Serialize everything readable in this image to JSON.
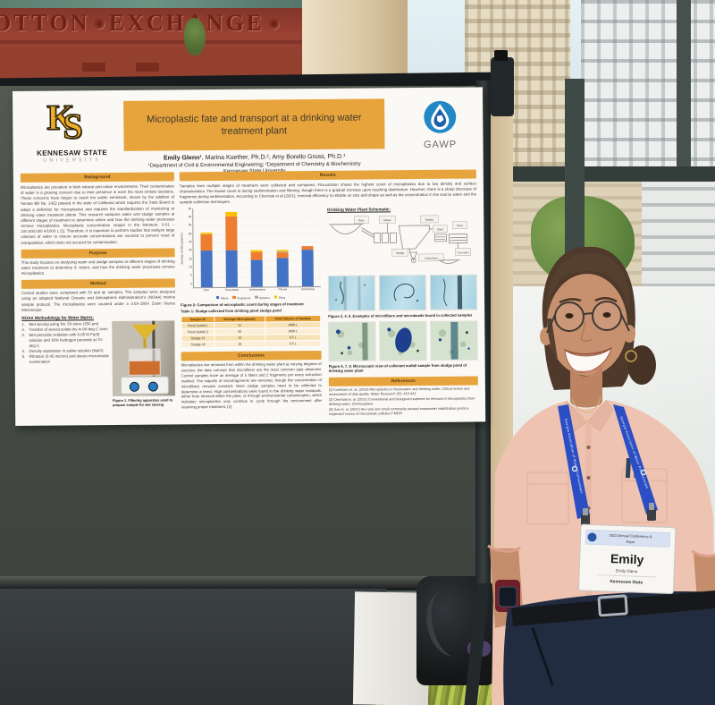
{
  "scene": {
    "mural": {
      "left_text": "OTTON",
      "right_text": "EXCHANGE"
    },
    "badge": {
      "header_line1": "2022 Annual Conference &",
      "header_line2": "Expo",
      "first_name": "Emily",
      "full_name": "Emily Glenn",
      "org": "Kennesaw State"
    },
    "lanyard_text": "Georgia Association of Water Professionals"
  },
  "poster": {
    "logos": {
      "ksu_mark_k": "K",
      "ksu_mark_s": "S",
      "ksu_line1": "KENNESAW STATE",
      "ksu_line2": "UNIVERSITY",
      "gawp_label": "GAWP"
    },
    "title": "Microplastic fate and transport at a drinking water treatment plant",
    "authors_lead": "Emily Glenn¹",
    "authors_rest": ", Marina Koether, Ph.D.², Amy Borello Gruss, Ph.D.¹",
    "affiliations": "¹Department of Civil & Environmental Engineering;  ²Department of Chemistry & Biochemistry",
    "university": "Kennesaw State University",
    "sections": {
      "background": {
        "heading": "Background",
        "text": "Microplastics are prevalent in both natural and urban environments. Their contamination of water is a growing concern due to their presence in even the most remote locations. These concerns have begun to reach the public sentiment, shown by the addition of Senate Bill No. 1422 passed in the state of California which requires the State Board to adopt a definition for microplastics and requires the standardization of monitoring at drinking water treatment plants. This research analyzes water and sludge samples at different stages of treatment to determine where and how the drinking water processes remove microplastics. Microplastic concentration ranges in the literature: 0.01 – 100,000,000 #/1000 L [1]. Therefore, it is important to perform studies that analyze large volumes of water to ensure accurate concentrations are counted to prevent need of extrapolation, which does not account for contamination."
      },
      "purpose": {
        "heading": "Purpose",
        "text": "This study focuses on analyzing water and sludge samples at different stages of drinking water treatment to determine if, where, and how the drinking water processes remove microplastics."
      },
      "method": {
        "heading": "Method",
        "text": "Control studies were completed with DI and air samples. The samples were analyzed using an adapted National Oceanic and Atmospheric Administration's (NOAA) marine sample protocol. The microplastics were counted under a 3.5X-180X Zoom Stereo Microscope.",
        "noaa_heading": "NOAA Methodology for Water Matrix:",
        "noaa_items": [
          "Wet sieving using No. 50 sieve (150 μm)",
          "Transfer of sieved solids dry in 90-deg C oven",
          "Wet peroxide oxidation with 0.05 M Fe(II) solution and 30% hydrogen peroxide at 70-deg C",
          "Density separation in saline solution (NaCl)",
          "Filtration (0.45 micron) and stereo microscopic examination"
        ]
      },
      "figure1_caption": "Figure 1. Filtering apparatus used to prepare sample for wet sieving",
      "results": {
        "heading": "Results",
        "text": "Samples from multiple stages of treatment were collected and compared. Flocculation shows the highest count of microplastics due to low density and surface characteristics. The lowest count is during sedimentation and filtering, though there is a gradual increase upon reaching disinfection. However, there is a sharp decrease of fragments during sedimentation. According to Cherniak et al (2021), removal efficiency is reliable on size and shape as well as the concentration in the source water and the sample collection techniques."
      },
      "figure2_caption": "Figure 2: Comparison of microplastic count during stages of treatment",
      "table": {
        "caption": "Table 1: Sludge collected from drinking plant sludge pond",
        "headers": [
          "Sample ID",
          "Average Microplastic",
          "Total Volume of Sample"
        ],
        "rows": [
          [
            "Pond Outfall 1",
            "31",
            "1000 L"
          ],
          [
            "Pond Outfall 2",
            "35",
            "1000 L"
          ],
          [
            "Sludge #1",
            "10",
            "8.5 L"
          ],
          [
            "Sludge #2",
            "18",
            "9.5 L"
          ]
        ]
      },
      "conclusions": {
        "heading": "Conclusions",
        "text": "Microplastics are removed from within the drinking water plant at varying degrees of success; the data conveys that microfibers are the most common type observed. Control samples have an average of 5 fibers and 2 fragments per every extraction method. The majority of microfragments are removed, though the concentration of microfibers remains constant. More sludge samples need to be collected to determine a trend. High concentrations were found in the drinking water residuals, either from removal within the plant, or through environmental contamination, which indicates microplastics may continue to cycle through the environment after receiving proper treatment. [3]"
      },
      "schematic": {
        "heading": "Drinking Water Plant Schematic:",
        "labels": [
          "Raw",
          "Mixed",
          "Settled",
          "Sand",
          "Final",
          "Sludge",
          "Sludge/Water",
          "Clean Water"
        ]
      },
      "figure345_caption": "Figure 3, 4, 5. Examples of microfibers and microbeads found in collected samples",
      "figure678_caption": "Figure 6, 7, 8. Microscopic view of collected outfall sample from sludge pond of drinking water plant",
      "references": {
        "heading": "References",
        "items": [
          "[1] Koelmans et. al. (2019) Microplastics in freshwaters and drinking water: Critical review and assessment of data quality. Water Research 155: 410-422",
          "[2] Cherniak et. al. (2021) Conventional and biological treatment for removal of microplastics from drinking water. Chemosphere",
          "[3] Gok et. al. (2021) Are rural and small community aerated wastewater stabilization ponds a neglected source of microplastic pollution? MDPI"
        ]
      }
    }
  },
  "chart_data": {
    "type": "bar",
    "stacked": true,
    "title": "",
    "categories": [
      "Raw",
      "Flocculation",
      "Sedimentation",
      "Filtered",
      "Disinfection"
    ],
    "series": [
      {
        "name": "Fibers",
        "color": "#4472c4",
        "values": [
          21,
          21,
          15,
          16,
          21
        ]
      },
      {
        "name": "Fragments",
        "color": "#ed7d31",
        "values": [
          9,
          19,
          5,
          3,
          2
        ]
      },
      {
        "name": "Spheres",
        "color": "#a5a5a5",
        "values": [
          0,
          0,
          0,
          1,
          0
        ]
      },
      {
        "name": "Films",
        "color": "#ffc000",
        "values": [
          1,
          3,
          1,
          1,
          0
        ]
      }
    ],
    "ylabel": "Number of Microplastics",
    "ylim": [
      0,
      45
    ],
    "ytick_step": 5,
    "legend_position": "bottom"
  },
  "colors": {
    "poster_accent": "#e8a43c",
    "lanyard_blue": "#2b4ec5",
    "gawp_blue": "#2188c5",
    "board_gray": "#474c45"
  }
}
